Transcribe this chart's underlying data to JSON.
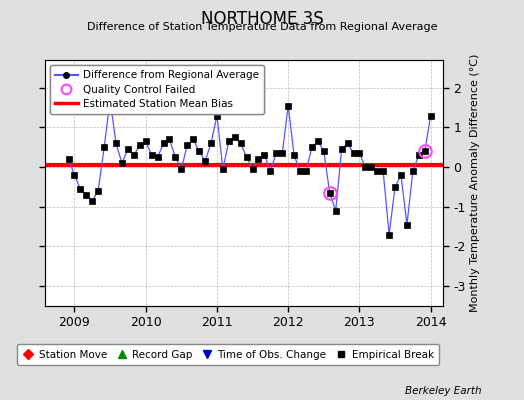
{
  "title": "NORTHOME 3S",
  "subtitle": "Difference of Station Temperature Data from Regional Average",
  "ylabel": "Monthly Temperature Anomaly Difference (°C)",
  "credit": "Berkeley Earth",
  "background_color": "#e0e0e0",
  "plot_bg_color": "#ffffff",
  "bias": 0.05,
  "ylim": [
    -3.5,
    2.7
  ],
  "xlim": [
    2008.58,
    2014.17
  ],
  "xticks": [
    2009,
    2010,
    2011,
    2012,
    2013,
    2014
  ],
  "yticks": [
    -3,
    -2,
    -1,
    0,
    1,
    2
  ],
  "months": [
    2008.917,
    2009.0,
    2009.083,
    2009.167,
    2009.25,
    2009.333,
    2009.417,
    2009.5,
    2009.583,
    2009.667,
    2009.75,
    2009.833,
    2009.917,
    2010.0,
    2010.083,
    2010.167,
    2010.25,
    2010.333,
    2010.417,
    2010.5,
    2010.583,
    2010.667,
    2010.75,
    2010.833,
    2010.917,
    2011.0,
    2011.083,
    2011.167,
    2011.25,
    2011.333,
    2011.417,
    2011.5,
    2011.583,
    2011.667,
    2011.75,
    2011.833,
    2011.917,
    2012.0,
    2012.083,
    2012.167,
    2012.25,
    2012.333,
    2012.417,
    2012.5,
    2012.583,
    2012.667,
    2012.75,
    2012.833,
    2012.917,
    2013.0,
    2013.083,
    2013.167,
    2013.25,
    2013.333,
    2013.417,
    2013.5,
    2013.583,
    2013.667,
    2013.75,
    2013.833,
    2013.917,
    2014.0
  ],
  "values": [
    0.2,
    -0.2,
    -0.55,
    -0.7,
    -0.85,
    -0.6,
    0.5,
    1.7,
    0.6,
    0.1,
    0.45,
    0.3,
    0.55,
    0.65,
    0.3,
    0.25,
    0.6,
    0.7,
    0.25,
    -0.05,
    0.55,
    0.7,
    0.4,
    0.15,
    0.6,
    1.3,
    -0.05,
    0.65,
    0.75,
    0.6,
    0.25,
    -0.05,
    0.2,
    0.3,
    -0.1,
    0.35,
    0.35,
    1.55,
    0.3,
    -0.1,
    -0.1,
    0.5,
    0.65,
    0.4,
    -0.65,
    -1.1,
    0.45,
    0.6,
    0.35,
    0.35,
    0.0,
    0.0,
    -0.1,
    -0.1,
    -1.7,
    -0.5,
    -0.2,
    -1.45,
    -0.1,
    0.3,
    0.4,
    1.3
  ],
  "qc_failed_indices": [
    44,
    60
  ],
  "line_color": "#5555ff",
  "marker_color": "#000000",
  "bias_color": "#ff0000",
  "qc_color": "#ff44ff",
  "legend1_entries": [
    {
      "label": "Difference from Regional Average"
    },
    {
      "label": "Quality Control Failed"
    },
    {
      "label": "Estimated Station Mean Bias"
    }
  ],
  "legend2_entries": [
    {
      "label": "Station Move",
      "color": "#ff0000",
      "marker": "D"
    },
    {
      "label": "Record Gap",
      "color": "#008800",
      "marker": "^"
    },
    {
      "label": "Time of Obs. Change",
      "color": "#0000cc",
      "marker": "v"
    },
    {
      "label": "Empirical Break",
      "color": "#000000",
      "marker": "s"
    }
  ]
}
